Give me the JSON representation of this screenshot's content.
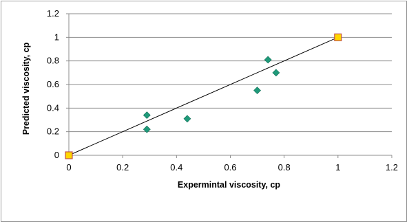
{
  "chart_data": {
    "type": "scatter",
    "title": "",
    "xlabel": "Expermintal viscosity, cp",
    "ylabel": "Predicted viscosity, cp",
    "xlim": [
      0,
      1.2
    ],
    "ylim": [
      0,
      1.2
    ],
    "x_ticks": [
      "0",
      "0.2",
      "0.4",
      "0.6",
      "0.8",
      "1",
      "1.2"
    ],
    "y_ticks": [
      "0",
      "0.2",
      "0.4",
      "0.6",
      "0.8",
      "1",
      "1.2"
    ],
    "grid": {
      "horizontal": true,
      "vertical": false
    },
    "legend": "none",
    "series": [
      {
        "marker": "diamond",
        "color": "#1f9a7a",
        "points": [
          {
            "x": 0.29,
            "y": 0.34
          },
          {
            "x": 0.29,
            "y": 0.22
          },
          {
            "x": 0.44,
            "y": 0.31
          },
          {
            "x": 0.7,
            "y": 0.55
          },
          {
            "x": 0.74,
            "y": 0.81
          },
          {
            "x": 0.77,
            "y": 0.7
          }
        ]
      },
      {
        "marker": "square",
        "color": "#ffd700",
        "edge_color": "#c0504d",
        "points": [
          {
            "x": 0,
            "y": 0
          },
          {
            "x": 1,
            "y": 1
          }
        ]
      }
    ],
    "reference_line": {
      "from": [
        0,
        0
      ],
      "to": [
        1,
        1
      ],
      "color": "#000000"
    }
  }
}
